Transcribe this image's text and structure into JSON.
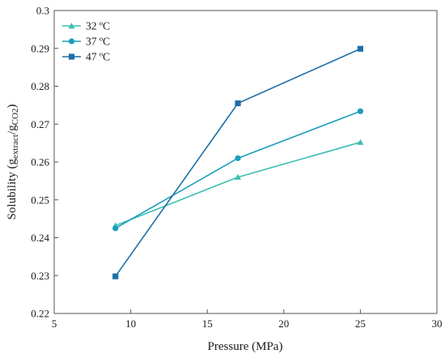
{
  "chart_data": {
    "type": "line",
    "xlabel": "Pressure (MPa)",
    "ylabel": "Solubility (g",
    "ylabel_sub1": "extract",
    "ylabel_slash": "/g",
    "ylabel_sub2": "CO2",
    "ylabel_close": ")",
    "xlim": [
      5,
      30
    ],
    "ylim": [
      0.22,
      0.3
    ],
    "xticks": [
      "5",
      "10",
      "15",
      "20",
      "25",
      "30"
    ],
    "yticks": [
      "0.22",
      "0.23",
      "0.24",
      "0.25",
      "0.26",
      "0.27",
      "0.28",
      "0.29",
      "0.3"
    ],
    "legend_position": "top-left",
    "grid": false,
    "series": [
      {
        "name": "32 ºC",
        "marker": "triangle",
        "color": "#3bbfb2",
        "x": [
          9,
          17,
          25
        ],
        "y": [
          0.2432,
          0.256,
          0.2652
        ]
      },
      {
        "name": "37 ºC",
        "marker": "circle",
        "color": "#1c9dbb",
        "x": [
          9,
          17,
          25
        ],
        "y": [
          0.2425,
          0.261,
          0.2734
        ]
      },
      {
        "name": "47 ºC",
        "marker": "square",
        "color": "#1f6fa8",
        "x": [
          9,
          17,
          25
        ],
        "y": [
          0.2298,
          0.2755,
          0.2899
        ]
      }
    ]
  }
}
